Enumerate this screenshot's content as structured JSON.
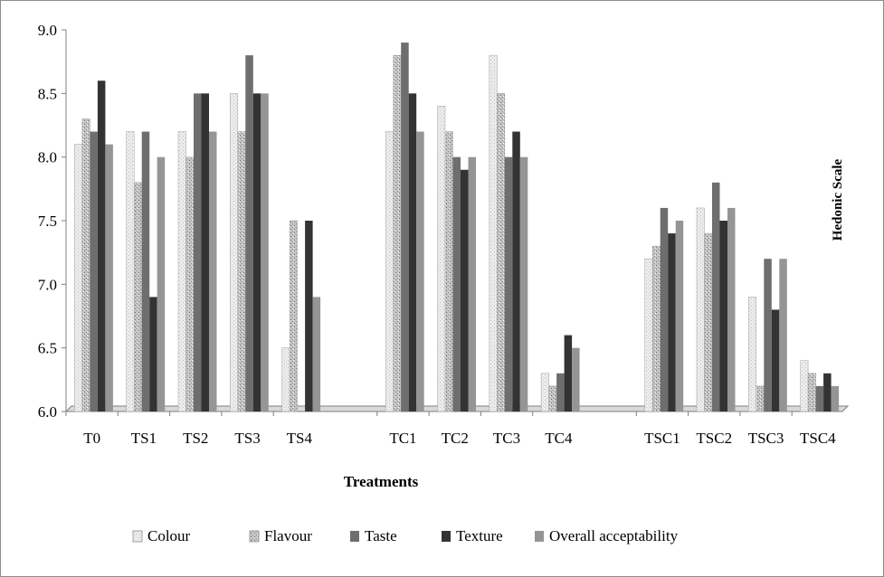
{
  "chart_data": {
    "type": "bar",
    "title": "",
    "xlabel": "Treatments",
    "ylabel": "Hedonic Scale",
    "ylim": [
      6.0,
      9.0
    ],
    "yticks": [
      "6.0",
      "6.5",
      "7.0",
      "7.5",
      "8.0",
      "8.5",
      "9.0"
    ],
    "grid": false,
    "legend_position": "bottom",
    "categories": [
      "T0",
      "TS1",
      "TS2",
      "TS3",
      "TS4",
      "TC1",
      "TC2",
      "TC3",
      "TC4",
      "TSC1",
      "TSC2",
      "TSC3",
      "TSC4"
    ],
    "groups": [
      [
        "T0",
        "TS1",
        "TS2",
        "TS3",
        "TS4"
      ],
      [
        "TC1",
        "TC2",
        "TC3",
        "TC4"
      ],
      [
        "TSC1",
        "TSC2",
        "TSC3",
        "TSC4"
      ]
    ],
    "series": [
      {
        "name": "Colour",
        "color": "#e8e8e8",
        "values": [
          8.1,
          8.2,
          8.2,
          8.5,
          6.5,
          8.2,
          8.4,
          8.8,
          6.3,
          7.2,
          7.6,
          6.9,
          6.4
        ]
      },
      {
        "name": "Flavour",
        "color": "#b8b8b8",
        "values": [
          8.3,
          7.8,
          8.0,
          8.2,
          7.5,
          8.8,
          8.2,
          8.5,
          6.2,
          7.3,
          7.4,
          6.2,
          6.3
        ]
      },
      {
        "name": "Taste",
        "color": "#6e6e6e",
        "values": [
          8.2,
          8.2,
          8.5,
          8.8,
          6.0,
          8.9,
          8.0,
          8.0,
          6.3,
          7.6,
          7.8,
          7.2,
          6.2
        ]
      },
      {
        "name": "Texture",
        "color": "#333333",
        "values": [
          8.6,
          6.9,
          8.5,
          8.5,
          7.5,
          8.5,
          7.9,
          8.2,
          6.6,
          7.4,
          7.5,
          6.8,
          6.3
        ]
      },
      {
        "name": "Overall acceptability",
        "color": "#959595",
        "values": [
          8.1,
          8.0,
          8.2,
          8.5,
          6.9,
          8.2,
          8.0,
          8.0,
          6.5,
          7.5,
          7.6,
          7.2,
          6.2
        ]
      }
    ]
  }
}
